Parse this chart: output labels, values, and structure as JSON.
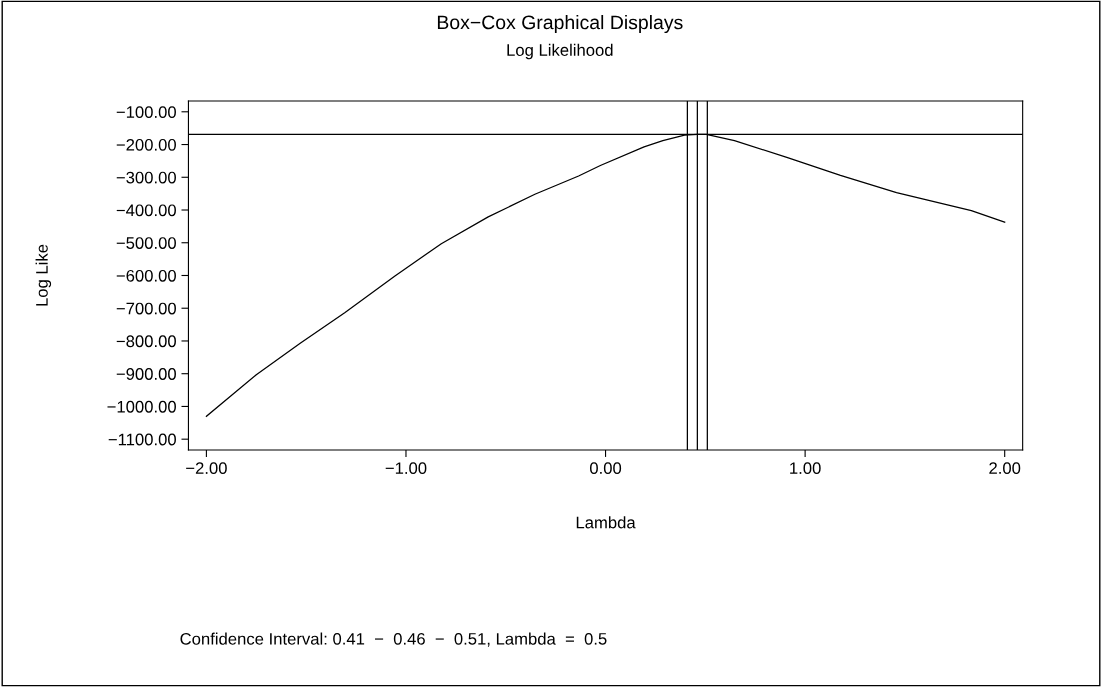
{
  "chart_data": {
    "type": "line",
    "title": "Box−Cox Graphical Displays",
    "subtitle": "Log Likelihood",
    "xlabel": "Lambda",
    "ylabel": "Log Like",
    "x": [
      -2.0,
      -1.75,
      -1.53,
      -1.307,
      -1.057,
      -0.823,
      -0.588,
      -0.354,
      -0.135,
      -0.026,
      0.193,
      0.287,
      0.396,
      0.46,
      0.505,
      0.646,
      0.912,
      1.177,
      1.458,
      1.833,
      2.0
    ],
    "series": [
      {
        "color": "#000000",
        "values": [
          -1030,
          -903,
          -807,
          -714,
          -602,
          -503,
          -421,
          -352,
          -296,
          -264,
          -207,
          -188,
          -171,
          -169,
          -169,
          -188,
          -240,
          -294,
          -347,
          -402,
          -437
        ]
      }
    ],
    "xlim": [
      -2.09,
      2.09
    ],
    "ylim": [
      -1133,
      -67
    ],
    "xticks": [
      {
        "value": -2,
        "label": "−2.00"
      },
      {
        "value": -1,
        "label": "−1.00"
      },
      {
        "value": 0,
        "label": "0.00"
      },
      {
        "value": 1,
        "label": "1.00"
      },
      {
        "value": 2,
        "label": "2.00"
      }
    ],
    "yticks": [
      {
        "value": -100,
        "label": "−100.00"
      },
      {
        "value": -200,
        "label": "−200.00"
      },
      {
        "value": -300,
        "label": "−300.00"
      },
      {
        "value": -400,
        "label": "−400.00"
      },
      {
        "value": -500,
        "label": "−500.00"
      },
      {
        "value": -600,
        "label": "−600.00"
      },
      {
        "value": -700,
        "label": "−700.00"
      },
      {
        "value": -800,
        "label": "−800.00"
      },
      {
        "value": -900,
        "label": "−900.00"
      },
      {
        "value": -1000,
        "label": "−1000.00"
      },
      {
        "value": -1100,
        "label": "−1100.00"
      }
    ],
    "ref_lines": [
      {
        "axis": "y",
        "value": -169,
        "color": "#000000"
      },
      {
        "axis": "x",
        "value": 0.41,
        "color": "#000000"
      },
      {
        "axis": "x",
        "value": 0.46,
        "color": "#000000"
      },
      {
        "axis": "x",
        "value": 0.51,
        "color": "#000000"
      }
    ],
    "annotations": [
      "Confidence Interval: 0.41  −  0.46  −  0.51, Lambda  =  0.5"
    ],
    "grid": false,
    "legend": false,
    "marker": "none",
    "line_style": "solid"
  }
}
